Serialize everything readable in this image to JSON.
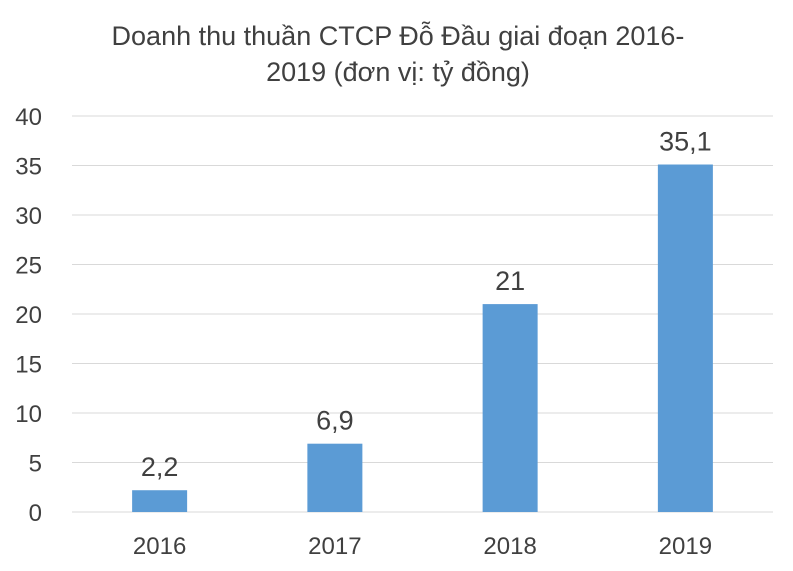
{
  "chart_data": {
    "type": "bar",
    "title_lines": [
      "Doanh thu thuần CTCP Đỗ Đầu giai đoạn 2016-",
      "2019 (đơn vị: tỷ đồng)"
    ],
    "categories": [
      "2016",
      "2017",
      "2018",
      "2019"
    ],
    "values": [
      2.2,
      6.9,
      21,
      35.1
    ],
    "data_labels": [
      "2,2",
      "6,9",
      "21",
      "35,1"
    ],
    "y_ticks": [
      "0",
      "5",
      "10",
      "15",
      "20",
      "25",
      "30",
      "35",
      "40"
    ],
    "ylim": [
      0,
      40
    ],
    "grid": true,
    "bar_color": "#5b9bd5",
    "xlabel": "",
    "ylabel": ""
  }
}
